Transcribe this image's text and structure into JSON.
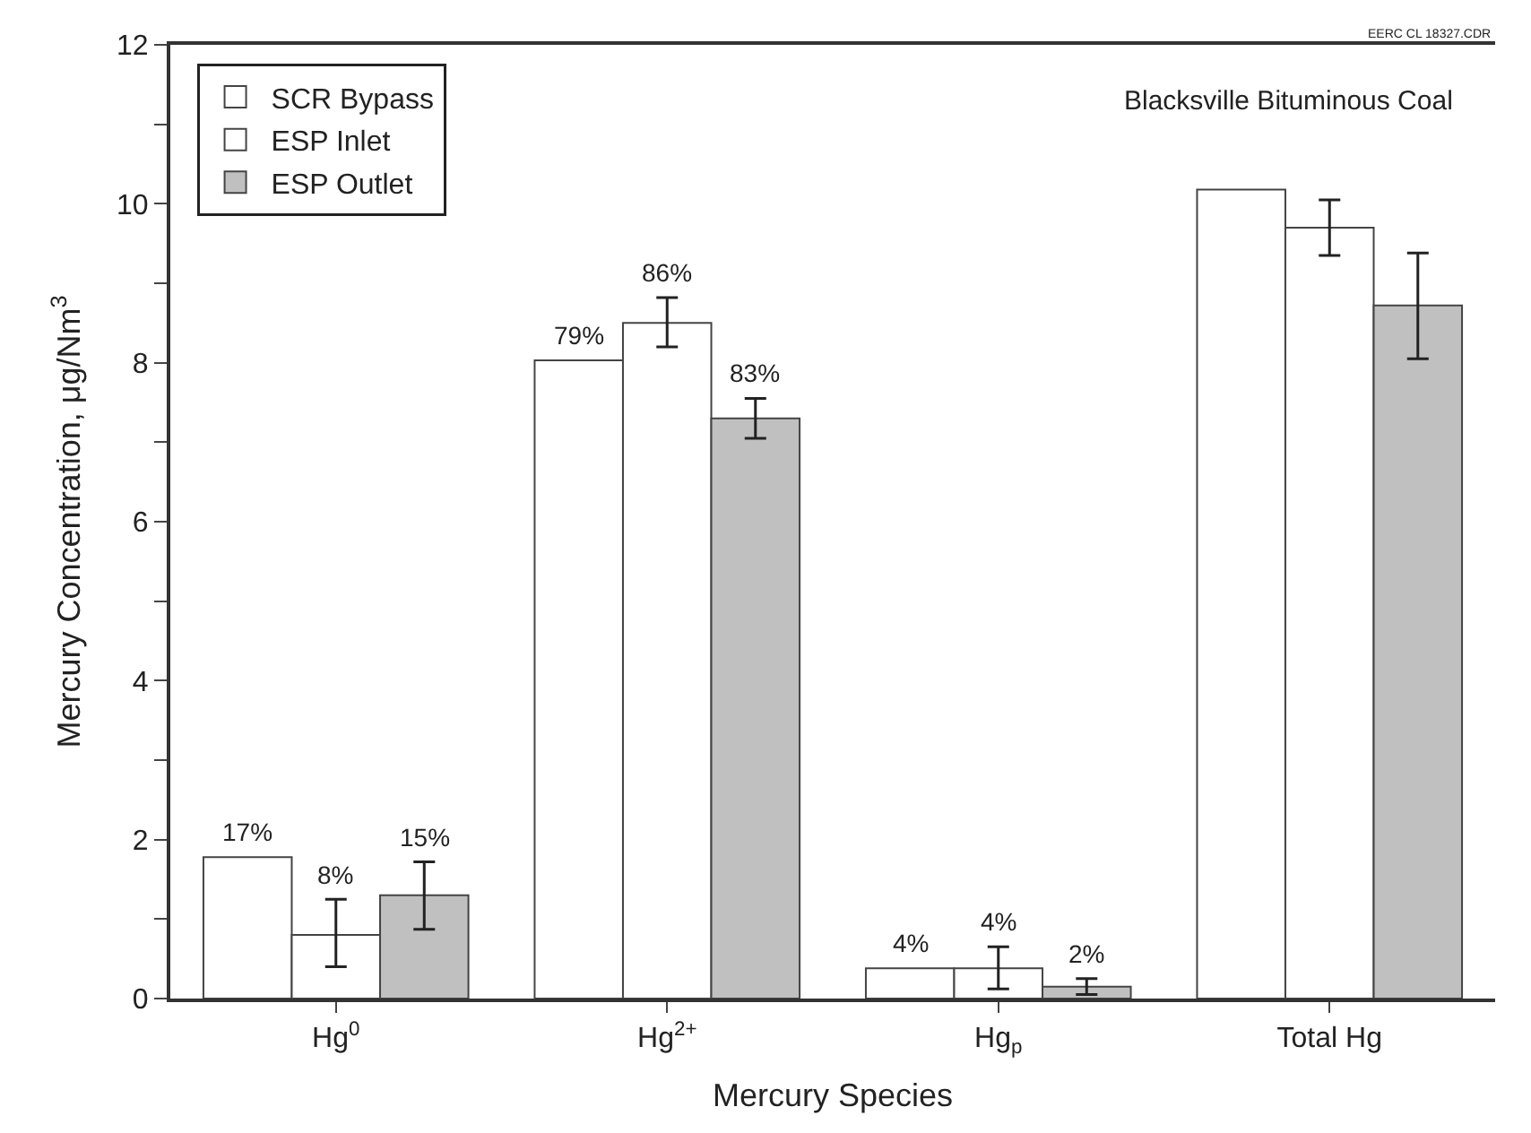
{
  "chart_data": {
    "type": "bar",
    "title": "Blacksville Bituminous Coal",
    "xlabel": "Mercury Species",
    "ylabel": "Mercury Concentration, μg/Nm$^{3}$",
    "categories": [
      "Hg$^{0}$",
      "Hg$^{2+}$",
      "Hg$_{p}$",
      "Total Hg"
    ],
    "series": [
      {
        "name": "SCR Bypass",
        "color": "#ffffff",
        "values": [
          1.78,
          8.03,
          0.38,
          10.18
        ]
      },
      {
        "name": "ESP Inlet",
        "color": "#ffffff",
        "values": [
          0.8,
          8.5,
          0.38,
          9.7
        ],
        "errors": [
          [
            0.4,
            1.25
          ],
          [
            8.2,
            8.82
          ],
          [
            0.12,
            0.65
          ],
          [
            9.35,
            10.05
          ]
        ]
      },
      {
        "name": "ESP Outlet",
        "color": "#c0c0c0",
        "values": [
          1.3,
          7.3,
          0.15,
          8.72
        ],
        "errors": [
          [
            0.87,
            1.72
          ],
          [
            7.05,
            7.55
          ],
          [
            0.05,
            0.25
          ],
          [
            8.05,
            9.38
          ]
        ]
      }
    ],
    "ylim": [
      0,
      12
    ],
    "yticks": [
      0,
      {
        "value": 1,
        "label": null
      },
      2,
      {
        "value": 3,
        "label": null
      },
      4,
      {
        "value": 5,
        "label": null
      },
      6,
      {
        "value": 7,
        "label": null
      },
      8,
      {
        "value": 9,
        "label": null
      },
      10,
      {
        "value": 11,
        "label": null
      },
      12
    ],
    "legend": "top left",
    "annotations": [
      "17%",
      "8%",
      "15%",
      "79%",
      "86%",
      "83%",
      "4%",
      "4%",
      "2%",
      "EERC CL 18327.CDR"
    ]
  }
}
